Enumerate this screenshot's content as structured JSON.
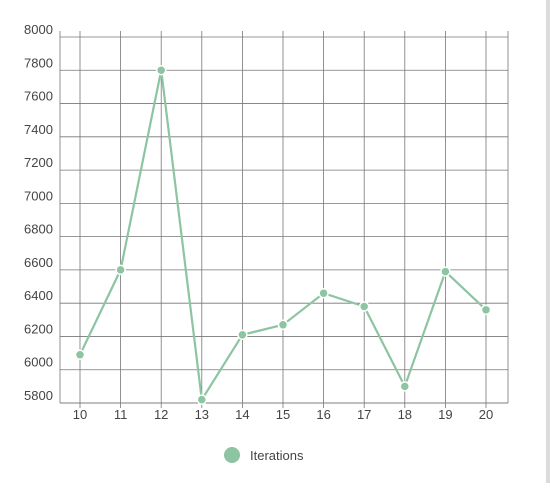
{
  "chart_data": {
    "type": "line",
    "x": [
      10,
      11,
      12,
      13,
      14,
      15,
      16,
      17,
      18,
      19,
      20
    ],
    "series": [
      {
        "name": "Iterations",
        "values": [
          6090,
          6600,
          7800,
          5820,
          6210,
          6270,
          6460,
          6380,
          5900,
          6590,
          6360
        ]
      }
    ],
    "xlabel": "",
    "ylabel": "",
    "ylim": [
      5800,
      8000
    ],
    "yticks": [
      5800,
      6000,
      6200,
      6400,
      6600,
      6800,
      7000,
      7200,
      7400,
      7600,
      7800,
      8000
    ],
    "grid": true,
    "legend_position": "bottom",
    "colors": {
      "series": "#8dc4a2",
      "grid": "#777777",
      "text": "#444444"
    }
  }
}
